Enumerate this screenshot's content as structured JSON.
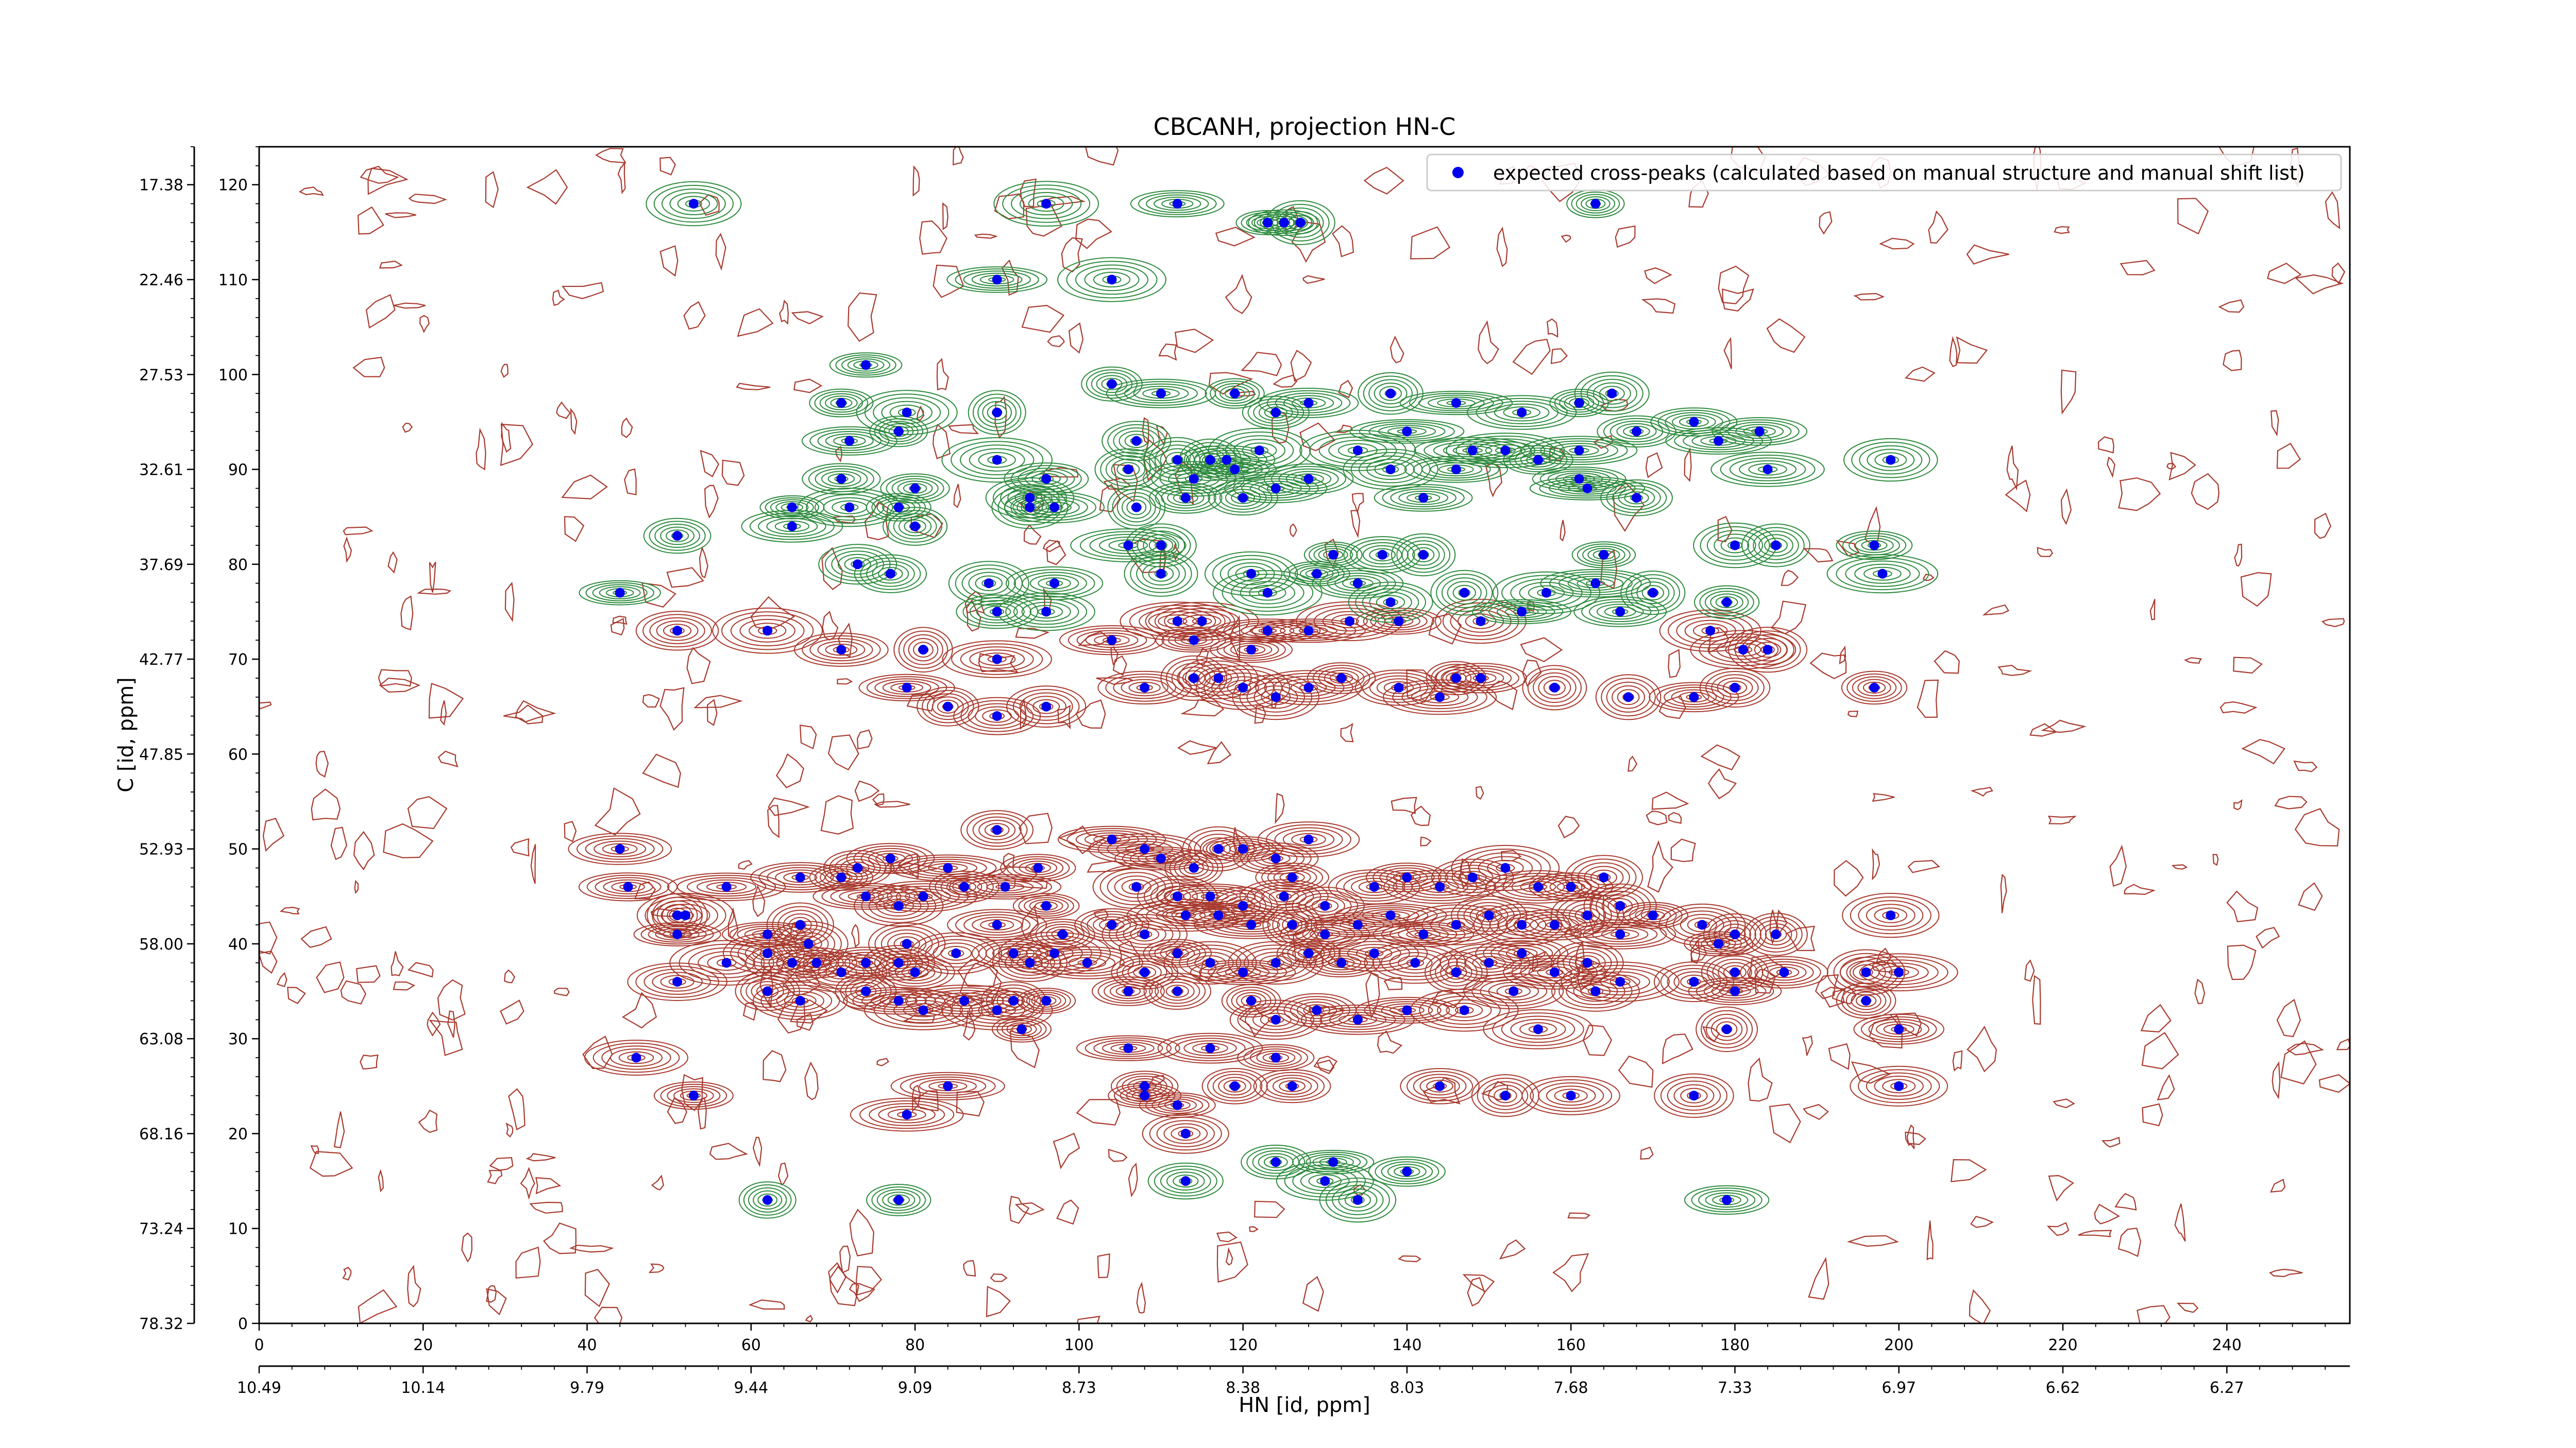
{
  "chart_data": {
    "type": "scatter",
    "title": "CBCANH, projection HN-C",
    "xlabel": "HN [id, ppm]",
    "ylabel": "C [id, ppm]",
    "xlim": [
      0,
      255
    ],
    "ylim": [
      0,
      124
    ],
    "legend": {
      "placement": "top-right",
      "entries": [
        "expected cross-peaks (calculated based on manual structure and manual shift list)"
      ]
    },
    "grid": false,
    "bottom_index_ticks": [
      "0",
      "20",
      "40",
      "60",
      "80",
      "100",
      "120",
      "140",
      "160",
      "180",
      "200",
      "220",
      "240"
    ],
    "bottom_ppm_ticks": [
      "10.49",
      "10.14",
      "9.79",
      "9.44",
      "9.09",
      "8.73",
      "8.38",
      "8.03",
      "7.68",
      "7.33",
      "6.97",
      "6.62",
      "6.27"
    ],
    "left_index_ticks": [
      "0",
      "10",
      "20",
      "30",
      "40",
      "50",
      "60",
      "70",
      "80",
      "90",
      "100",
      "110",
      "120"
    ],
    "left_ppm_ticks": [
      "78.32",
      "73.24",
      "68.16",
      "63.08",
      "58.00",
      "52.93",
      "47.85",
      "42.77",
      "37.69",
      "32.61",
      "27.53",
      "22.46",
      "17.38"
    ],
    "contour_colors": {
      "positive": "#2e8b3e",
      "negative": "#a83a2e"
    },
    "marker_color": "#0000ee",
    "peaks": {
      "name": "expected cross-peaks (calculated based on manual structure and manual shift list)",
      "points": [
        [
          53,
          118
        ],
        [
          96,
          118
        ],
        [
          112,
          118
        ],
        [
          163,
          118
        ],
        [
          123,
          116
        ],
        [
          125,
          116
        ],
        [
          127,
          116
        ],
        [
          90,
          110
        ],
        [
          104,
          110
        ],
        [
          74,
          101
        ],
        [
          71,
          97
        ],
        [
          79,
          96
        ],
        [
          104,
          99
        ],
        [
          110,
          98
        ],
        [
          119,
          98
        ],
        [
          124,
          96
        ],
        [
          128,
          97
        ],
        [
          138,
          98
        ],
        [
          146,
          97
        ],
        [
          154,
          96
        ],
        [
          161,
          97
        ],
        [
          165,
          98
        ],
        [
          72,
          93
        ],
        [
          78,
          94
        ],
        [
          90,
          96
        ],
        [
          107,
          93
        ],
        [
          112,
          91
        ],
        [
          118,
          91
        ],
        [
          122,
          92
        ],
        [
          134,
          92
        ],
        [
          140,
          94
        ],
        [
          148,
          92
        ],
        [
          152,
          92
        ],
        [
          161,
          92
        ],
        [
          168,
          94
        ],
        [
          175,
          95
        ],
        [
          178,
          93
        ],
        [
          183,
          94
        ],
        [
          71,
          89
        ],
        [
          80,
          88
        ],
        [
          90,
          91
        ],
        [
          96,
          89
        ],
        [
          106,
          90
        ],
        [
          114,
          89
        ],
        [
          116,
          91
        ],
        [
          119,
          90
        ],
        [
          128,
          89
        ],
        [
          138,
          90
        ],
        [
          146,
          90
        ],
        [
          156,
          91
        ],
        [
          161,
          89
        ],
        [
          184,
          90
        ],
        [
          199,
          91
        ],
        [
          65,
          86
        ],
        [
          72,
          86
        ],
        [
          78,
          86
        ],
        [
          94,
          87
        ],
        [
          97,
          86
        ],
        [
          107,
          86
        ],
        [
          113,
          87
        ],
        [
          120,
          87
        ],
        [
          124,
          88
        ],
        [
          142,
          87
        ],
        [
          162,
          88
        ],
        [
          168,
          87
        ],
        [
          51,
          83
        ],
        [
          65,
          84
        ],
        [
          80,
          84
        ],
        [
          94,
          86
        ],
        [
          106,
          82
        ],
        [
          110,
          82
        ],
        [
          131,
          81
        ],
        [
          137,
          81
        ],
        [
          142,
          81
        ],
        [
          164,
          81
        ],
        [
          180,
          82
        ],
        [
          185,
          82
        ],
        [
          197,
          82
        ],
        [
          73,
          80
        ],
        [
          77,
          79
        ],
        [
          89,
          78
        ],
        [
          97,
          78
        ],
        [
          110,
          79
        ],
        [
          121,
          79
        ],
        [
          123,
          77
        ],
        [
          129,
          79
        ],
        [
          134,
          78
        ],
        [
          138,
          76
        ],
        [
          147,
          77
        ],
        [
          157,
          77
        ],
        [
          163,
          78
        ],
        [
          170,
          77
        ],
        [
          198,
          79
        ],
        [
          44,
          77
        ],
        [
          51,
          73
        ],
        [
          62,
          73
        ],
        [
          90,
          75
        ],
        [
          96,
          75
        ],
        [
          112,
          74
        ],
        [
          115,
          74
        ],
        [
          123,
          73
        ],
        [
          128,
          73
        ],
        [
          133,
          74
        ],
        [
          139,
          74
        ],
        [
          149,
          74
        ],
        [
          154,
          75
        ],
        [
          166,
          75
        ],
        [
          177,
          73
        ],
        [
          179,
          76
        ],
        [
          71,
          71
        ],
        [
          81,
          71
        ],
        [
          90,
          70
        ],
        [
          104,
          72
        ],
        [
          114,
          72
        ],
        [
          121,
          71
        ],
        [
          181,
          71
        ],
        [
          184,
          71
        ],
        [
          79,
          67
        ],
        [
          84,
          65
        ],
        [
          90,
          64
        ],
        [
          96,
          65
        ],
        [
          108,
          67
        ],
        [
          114,
          68
        ],
        [
          117,
          68
        ],
        [
          120,
          67
        ],
        [
          124,
          66
        ],
        [
          128,
          67
        ],
        [
          132,
          68
        ],
        [
          139,
          67
        ],
        [
          144,
          66
        ],
        [
          146,
          68
        ],
        [
          149,
          68
        ],
        [
          158,
          67
        ],
        [
          167,
          66
        ],
        [
          175,
          66
        ],
        [
          180,
          67
        ],
        [
          197,
          67
        ],
        [
          44,
          50
        ],
        [
          45,
          46
        ],
        [
          51,
          43
        ],
        [
          51,
          41
        ],
        [
          52,
          43
        ],
        [
          57,
          46
        ],
        [
          62,
          41
        ],
        [
          66,
          42
        ],
        [
          66,
          47
        ],
        [
          67,
          40
        ],
        [
          71,
          47
        ],
        [
          73,
          48
        ],
        [
          74,
          45
        ],
        [
          77,
          49
        ],
        [
          78,
          44
        ],
        [
          79,
          40
        ],
        [
          81,
          45
        ],
        [
          84,
          48
        ],
        [
          86,
          46
        ],
        [
          90,
          52
        ],
        [
          91,
          46
        ],
        [
          95,
          48
        ],
        [
          96,
          44
        ],
        [
          98,
          41
        ],
        [
          92,
          39
        ],
        [
          90,
          42
        ],
        [
          104,
          51
        ],
        [
          108,
          50
        ],
        [
          110,
          49
        ],
        [
          114,
          48
        ],
        [
          117,
          50
        ],
        [
          120,
          50
        ],
        [
          124,
          49
        ],
        [
          126,
          47
        ],
        [
          128,
          51
        ],
        [
          107,
          46
        ],
        [
          112,
          45
        ],
        [
          116,
          45
        ],
        [
          120,
          44
        ],
        [
          125,
          45
        ],
        [
          130,
          44
        ],
        [
          136,
          46
        ],
        [
          140,
          47
        ],
        [
          144,
          46
        ],
        [
          148,
          47
        ],
        [
          152,
          48
        ],
        [
          156,
          46
        ],
        [
          160,
          46
        ],
        [
          164,
          47
        ],
        [
          166,
          44
        ],
        [
          104,
          42
        ],
        [
          108,
          41
        ],
        [
          113,
          43
        ],
        [
          117,
          43
        ],
        [
          121,
          42
        ],
        [
          126,
          42
        ],
        [
          130,
          41
        ],
        [
          134,
          42
        ],
        [
          138,
          43
        ],
        [
          142,
          41
        ],
        [
          146,
          42
        ],
        [
          150,
          43
        ],
        [
          154,
          42
        ],
        [
          158,
          42
        ],
        [
          162,
          43
        ],
        [
          166,
          41
        ],
        [
          170,
          43
        ],
        [
          176,
          42
        ],
        [
          178,
          40
        ],
        [
          180,
          41
        ],
        [
          185,
          41
        ],
        [
          199,
          43
        ],
        [
          51,
          36
        ],
        [
          57,
          38
        ],
        [
          62,
          39
        ],
        [
          65,
          38
        ],
        [
          68,
          38
        ],
        [
          71,
          37
        ],
        [
          74,
          38
        ],
        [
          78,
          38
        ],
        [
          80,
          37
        ],
        [
          85,
          39
        ],
        [
          94,
          38
        ],
        [
          97,
          39
        ],
        [
          101,
          38
        ],
        [
          108,
          37
        ],
        [
          112,
          39
        ],
        [
          116,
          38
        ],
        [
          120,
          37
        ],
        [
          124,
          38
        ],
        [
          128,
          39
        ],
        [
          132,
          38
        ],
        [
          136,
          39
        ],
        [
          141,
          38
        ],
        [
          146,
          37
        ],
        [
          150,
          38
        ],
        [
          154,
          39
        ],
        [
          158,
          37
        ],
        [
          162,
          38
        ],
        [
          166,
          36
        ],
        [
          175,
          36
        ],
        [
          180,
          37
        ],
        [
          62,
          35
        ],
        [
          66,
          34
        ],
        [
          74,
          35
        ],
        [
          78,
          34
        ],
        [
          81,
          33
        ],
        [
          86,
          34
        ],
        [
          90,
          33
        ],
        [
          92,
          34
        ],
        [
          96,
          34
        ],
        [
          106,
          35
        ],
        [
          112,
          35
        ],
        [
          121,
          34
        ],
        [
          124,
          32
        ],
        [
          129,
          33
        ],
        [
          134,
          32
        ],
        [
          140,
          33
        ],
        [
          147,
          33
        ],
        [
          153,
          35
        ],
        [
          163,
          35
        ],
        [
          180,
          35
        ],
        [
          186,
          37
        ],
        [
          196,
          37
        ],
        [
          200,
          37
        ],
        [
          196,
          34
        ],
        [
          93,
          31
        ],
        [
          106,
          29
        ],
        [
          116,
          29
        ],
        [
          124,
          28
        ],
        [
          156,
          31
        ],
        [
          179,
          31
        ],
        [
          200,
          31
        ],
        [
          46,
          28
        ],
        [
          84,
          25
        ],
        [
          108,
          25
        ],
        [
          108,
          24
        ],
        [
          112,
          23
        ],
        [
          119,
          25
        ],
        [
          126,
          25
        ],
        [
          144,
          25
        ],
        [
          152,
          24
        ],
        [
          160,
          24
        ],
        [
          175,
          24
        ],
        [
          200,
          25
        ],
        [
          53,
          24
        ],
        [
          79,
          22
        ],
        [
          113,
          20
        ],
        [
          124,
          17
        ],
        [
          131,
          17
        ],
        [
          140,
          16
        ],
        [
          113,
          15
        ],
        [
          130,
          15
        ],
        [
          62,
          13
        ],
        [
          78,
          13
        ],
        [
          134,
          13
        ],
        [
          179,
          13
        ]
      ]
    }
  }
}
